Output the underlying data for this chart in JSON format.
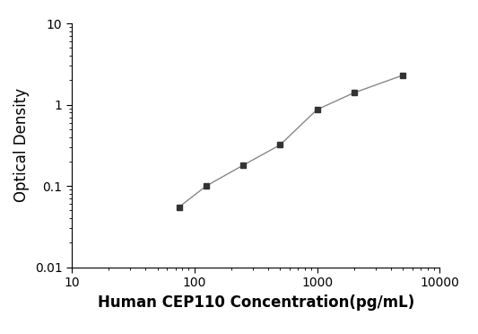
{
  "x_values": [
    75,
    125,
    250,
    500,
    1000,
    2000,
    5000
  ],
  "y_values": [
    0.055,
    0.1,
    0.18,
    0.32,
    0.87,
    1.4,
    2.3
  ],
  "xlabel": "Human CEP110 Concentration(pg/mL)",
  "ylabel": "Optical Density",
  "xlim": [
    10,
    10000
  ],
  "ylim": [
    0.01,
    10
  ],
  "x_ticks": [
    10,
    100,
    1000,
    10000
  ],
  "y_ticks": [
    0.01,
    0.1,
    1,
    10
  ],
  "line_color": "#888888",
  "marker_color": "#333333",
  "marker_style": "s",
  "marker_size": 5,
  "line_width": 1.0,
  "background_color": "#ffffff",
  "xlabel_fontsize": 12,
  "ylabel_fontsize": 12,
  "tick_fontsize": 10,
  "xlabel_bold": true
}
